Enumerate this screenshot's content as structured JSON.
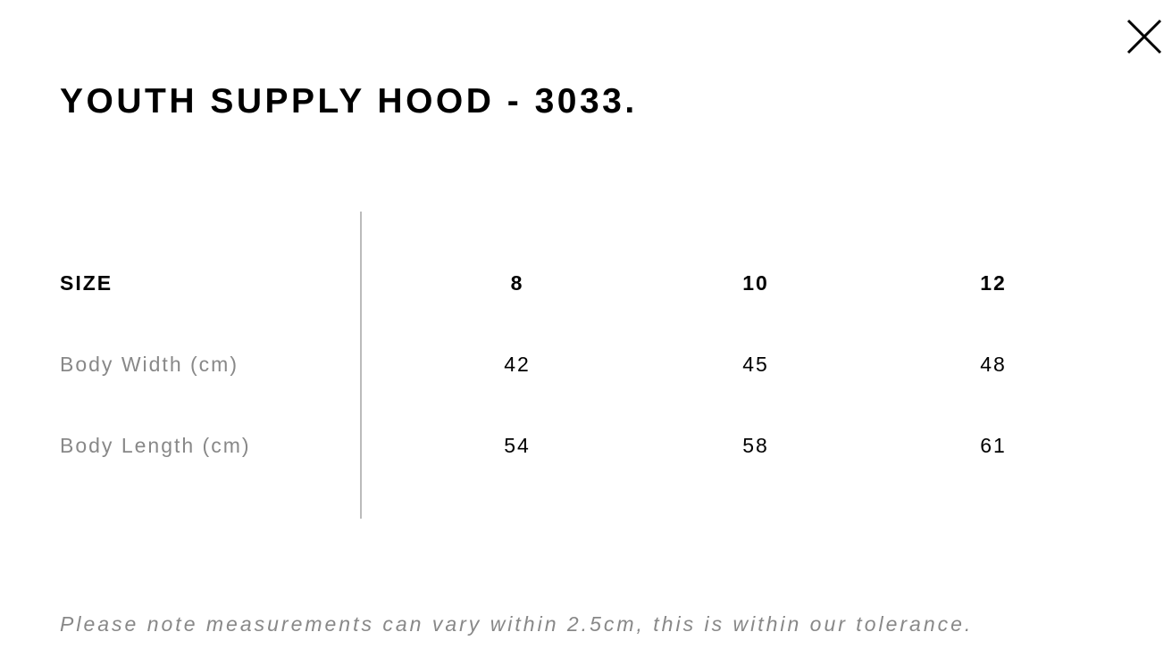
{
  "title": "YOUTH SUPPLY HOOD - 3033.",
  "close_icon": "close-x-icon",
  "table": {
    "header": {
      "label": "SIZE",
      "values": [
        "8",
        "10",
        "12"
      ]
    },
    "rows": [
      {
        "label": "Body Width (cm)",
        "values": [
          "42",
          "45",
          "48"
        ]
      },
      {
        "label": "Body Length (cm)",
        "values": [
          "54",
          "58",
          "61"
        ]
      }
    ]
  },
  "note": "Please note measurements can vary within 2.5cm, this is within our tolerance."
}
